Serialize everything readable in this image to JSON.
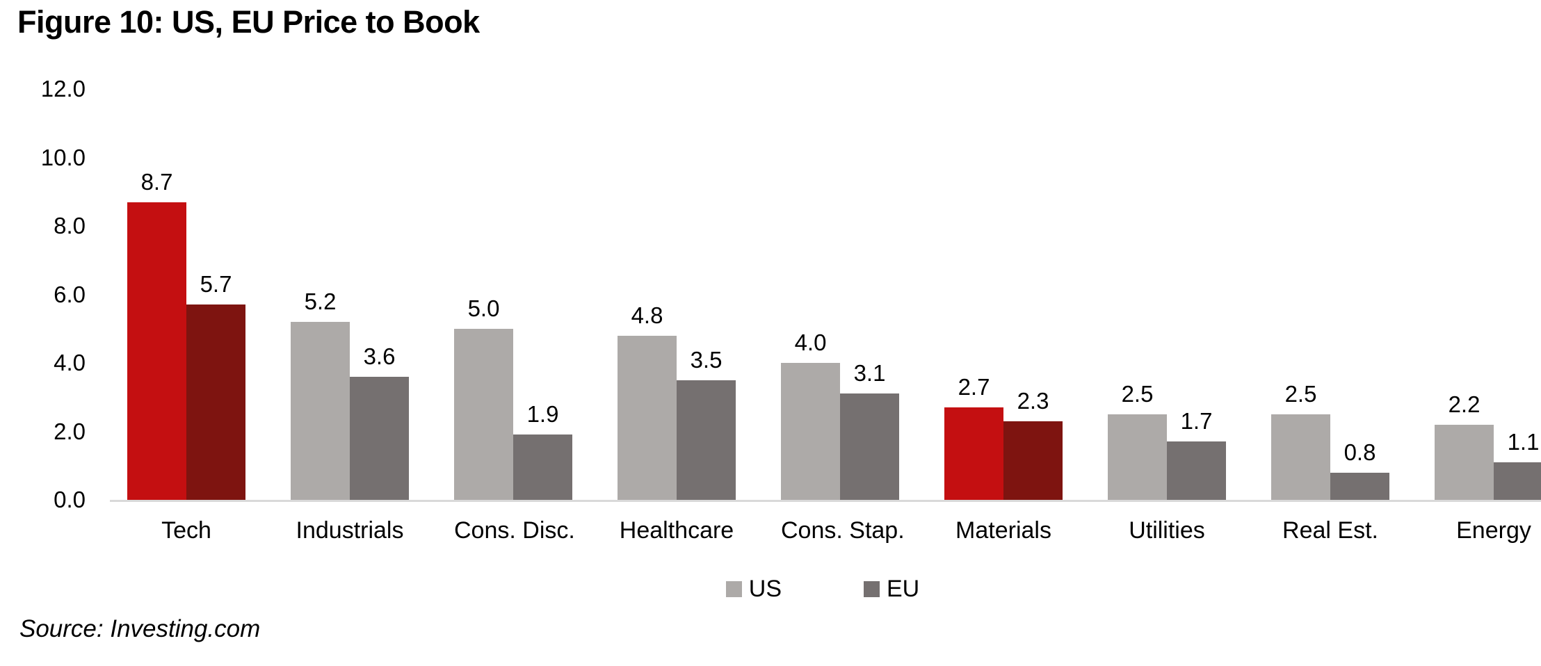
{
  "title": "Figure 10: US, EU Price to Book",
  "source": "Source: Investing.com",
  "colors": {
    "us_default": "#ADAAA8",
    "eu_default": "#757070",
    "us_highlight": "#C40F11",
    "eu_highlight": "#7E1410",
    "axis_line": "#D9D9D9",
    "text": "#000000",
    "background": "#FFFFFF"
  },
  "chart_data": {
    "type": "bar",
    "title": "Figure 10: US, EU Price to Book",
    "categories": [
      "Tech",
      "Industrials",
      "Cons. Disc.",
      "Healthcare",
      "Cons. Stap.",
      "Materials",
      "Utilities",
      "Real Est.",
      "Energy"
    ],
    "series": [
      {
        "name": "US",
        "values": [
          8.7,
          5.2,
          5.0,
          4.8,
          4.0,
          2.7,
          2.5,
          2.5,
          2.2
        ]
      },
      {
        "name": "EU",
        "values": [
          5.7,
          3.6,
          1.9,
          3.5,
          3.1,
          2.3,
          1.7,
          0.8,
          1.1
        ]
      }
    ],
    "highlighted_categories": [
      "Tech",
      "Materials"
    ],
    "y_ticks": [
      "12.0",
      "10.0",
      "8.0",
      "6.0",
      "4.0",
      "2.0",
      "0.0"
    ],
    "ylim": [
      0,
      12
    ],
    "xlabel": "",
    "ylabel": "",
    "value_labels": true,
    "grid": false,
    "legend_position": "bottom"
  }
}
